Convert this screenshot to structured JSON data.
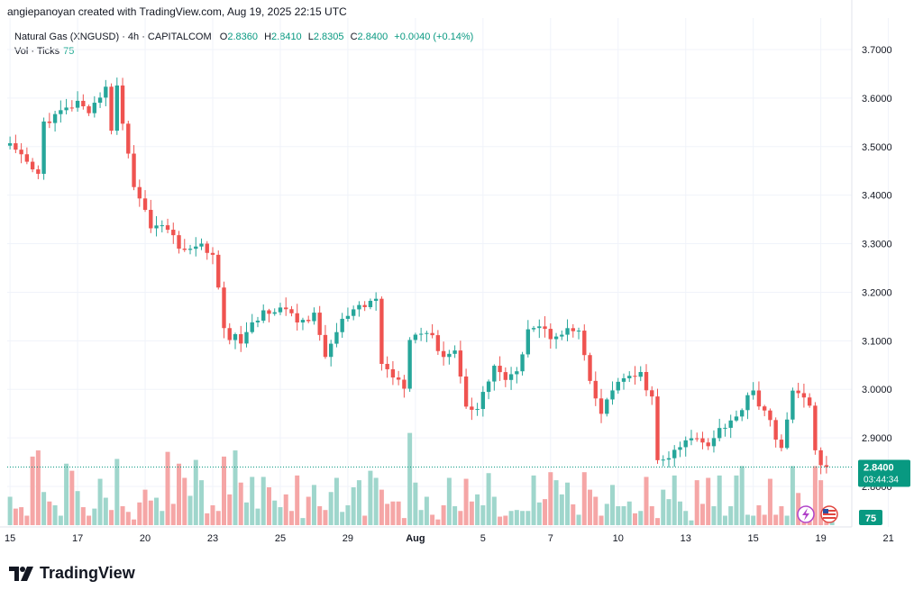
{
  "caption": "angiepanoyan created with TradingView.com, Aug 19, 2025 22:15 UTC",
  "legend": {
    "symbol": "Natural Gas (XNGUSD) · 4h · CAPITALCOM",
    "o_label": "O",
    "o_value": "2.8360",
    "h_label": "H",
    "h_value": "2.8410",
    "l_label": "L",
    "l_value": "2.8305",
    "c_label": "C",
    "c_value": "2.8400",
    "change": "+0.0040 (+0.14%)",
    "vol_label": "Vol · Ticks",
    "vol_value": "75"
  },
  "price_tag": {
    "value": "2.8400",
    "countdown": "03:44:34"
  },
  "volume_tag": "75",
  "brand": "TradingView",
  "icons": [
    "lightning-icon",
    "us-flag-icon"
  ],
  "colors": {
    "up": "#26a69a",
    "down": "#ef5350",
    "vol_up": "#9fd6cc",
    "vol_down": "#f5a6a6",
    "last": "#089981"
  },
  "chart_data": {
    "type": "candlestick",
    "interval": "4h",
    "y_axis": {
      "ticks": [
        "3.7000",
        "3.6000",
        "3.5000",
        "3.4000",
        "3.3000",
        "3.2000",
        "3.1000",
        "3.0000",
        "2.9000",
        "2.8000"
      ],
      "range": [
        2.75,
        3.72
      ]
    },
    "x_axis": {
      "ticks": [
        {
          "label": "15",
          "at": 0
        },
        {
          "label": "17",
          "at": 12
        },
        {
          "label": "20",
          "at": 24
        },
        {
          "label": "23",
          "at": 36
        },
        {
          "label": "25",
          "at": 48
        },
        {
          "label": "29",
          "at": 60
        },
        {
          "label": "Aug",
          "at": 72,
          "bold": true
        },
        {
          "label": "5",
          "at": 84
        },
        {
          "label": "7",
          "at": 96
        },
        {
          "label": "10",
          "at": 108
        },
        {
          "label": "13",
          "at": 120
        },
        {
          "label": "15",
          "at": 132
        },
        {
          "label": "19",
          "at": 144
        },
        {
          "label": "21",
          "at": 156
        }
      ]
    },
    "waypoints": [
      [
        0,
        3.5
      ],
      [
        5,
        3.44
      ],
      [
        6,
        3.55
      ],
      [
        9,
        3.57
      ],
      [
        12,
        3.59
      ],
      [
        14,
        3.56
      ],
      [
        17,
        3.63
      ],
      [
        18,
        3.53
      ],
      [
        19,
        3.62
      ],
      [
        22,
        3.42
      ],
      [
        25,
        3.34
      ],
      [
        28,
        3.33
      ],
      [
        31,
        3.28
      ],
      [
        33,
        3.3
      ],
      [
        36,
        3.28
      ],
      [
        38,
        3.13
      ],
      [
        39,
        3.11
      ],
      [
        41,
        3.1
      ],
      [
        45,
        3.16
      ],
      [
        48,
        3.17
      ],
      [
        51,
        3.14
      ],
      [
        54,
        3.15
      ],
      [
        56,
        3.07
      ],
      [
        59,
        3.14
      ],
      [
        61,
        3.16
      ],
      [
        63,
        3.17
      ],
      [
        65,
        3.19
      ],
      [
        66,
        3.05
      ],
      [
        68,
        3.03
      ],
      [
        70,
        3.01
      ],
      [
        71,
        3.11
      ],
      [
        74,
        3.12
      ],
      [
        77,
        3.07
      ],
      [
        79,
        3.08
      ],
      [
        81,
        2.97
      ],
      [
        83,
        2.96
      ],
      [
        86,
        3.05
      ],
      [
        88,
        3.02
      ],
      [
        90,
        3.03
      ],
      [
        92,
        3.13
      ],
      [
        94,
        3.13
      ],
      [
        96,
        3.11
      ],
      [
        98,
        3.12
      ],
      [
        101,
        3.12
      ],
      [
        103,
        3.01
      ],
      [
        105,
        2.95
      ],
      [
        108,
        3.02
      ],
      [
        110,
        3.02
      ],
      [
        112,
        3.03
      ],
      [
        114,
        2.98
      ],
      [
        115,
        2.85
      ],
      [
        117,
        2.86
      ],
      [
        119,
        2.88
      ],
      [
        121,
        2.9
      ],
      [
        124,
        2.89
      ],
      [
        126,
        2.92
      ],
      [
        129,
        2.94
      ],
      [
        131,
        2.99
      ],
      [
        132,
        3.0
      ],
      [
        133,
        2.97
      ],
      [
        135,
        2.93
      ],
      [
        137,
        2.88
      ],
      [
        139,
        2.99
      ],
      [
        141,
        2.99
      ],
      [
        142,
        2.97
      ],
      [
        143,
        2.87
      ],
      [
        144,
        2.84
      ],
      [
        145,
        2.84
      ]
    ],
    "volume": {
      "max": 200,
      "values": [
        60,
        35,
        38,
        20,
        145,
        158,
        70,
        50,
        42,
        20,
        130,
        115,
        72,
        38,
        20,
        35,
        98,
        58,
        32,
        140,
        40,
        28,
        12,
        48,
        75,
        52,
        58,
        30,
        155,
        45,
        130,
        100,
        62,
        138,
        95,
        25,
        42,
        30,
        145,
        65,
        158,
        90,
        48,
        102,
        35,
        102,
        80,
        52,
        38,
        65,
        30,
        105,
        15,
        60,
        85,
        40,
        32,
        70,
        100,
        28,
        42,
        80,
        95,
        20,
        115,
        100,
        75,
        45,
        50,
        50,
        15,
        195,
        90,
        32,
        60,
        22,
        12,
        42,
        100,
        40,
        30,
        98,
        50,
        65,
        42,
        110,
        60,
        18,
        20,
        30,
        32,
        30,
        30,
        105,
        48,
        55,
        112,
        95,
        65,
        90,
        44,
        22,
        112,
        75,
        60,
        20,
        45,
        85,
        40,
        40,
        50,
        25,
        30,
        102,
        40,
        15,
        75,
        55,
        105,
        50,
        30,
        10,
        95,
        45,
        100,
        40,
        105,
        20,
        40,
        105,
        125,
        22,
        20,
        42,
        22,
        98,
        22,
        40,
        20,
        125,
        68,
        15,
        35,
        125,
        95,
        30,
        10
      ]
    },
    "last_price": 2.84
  }
}
